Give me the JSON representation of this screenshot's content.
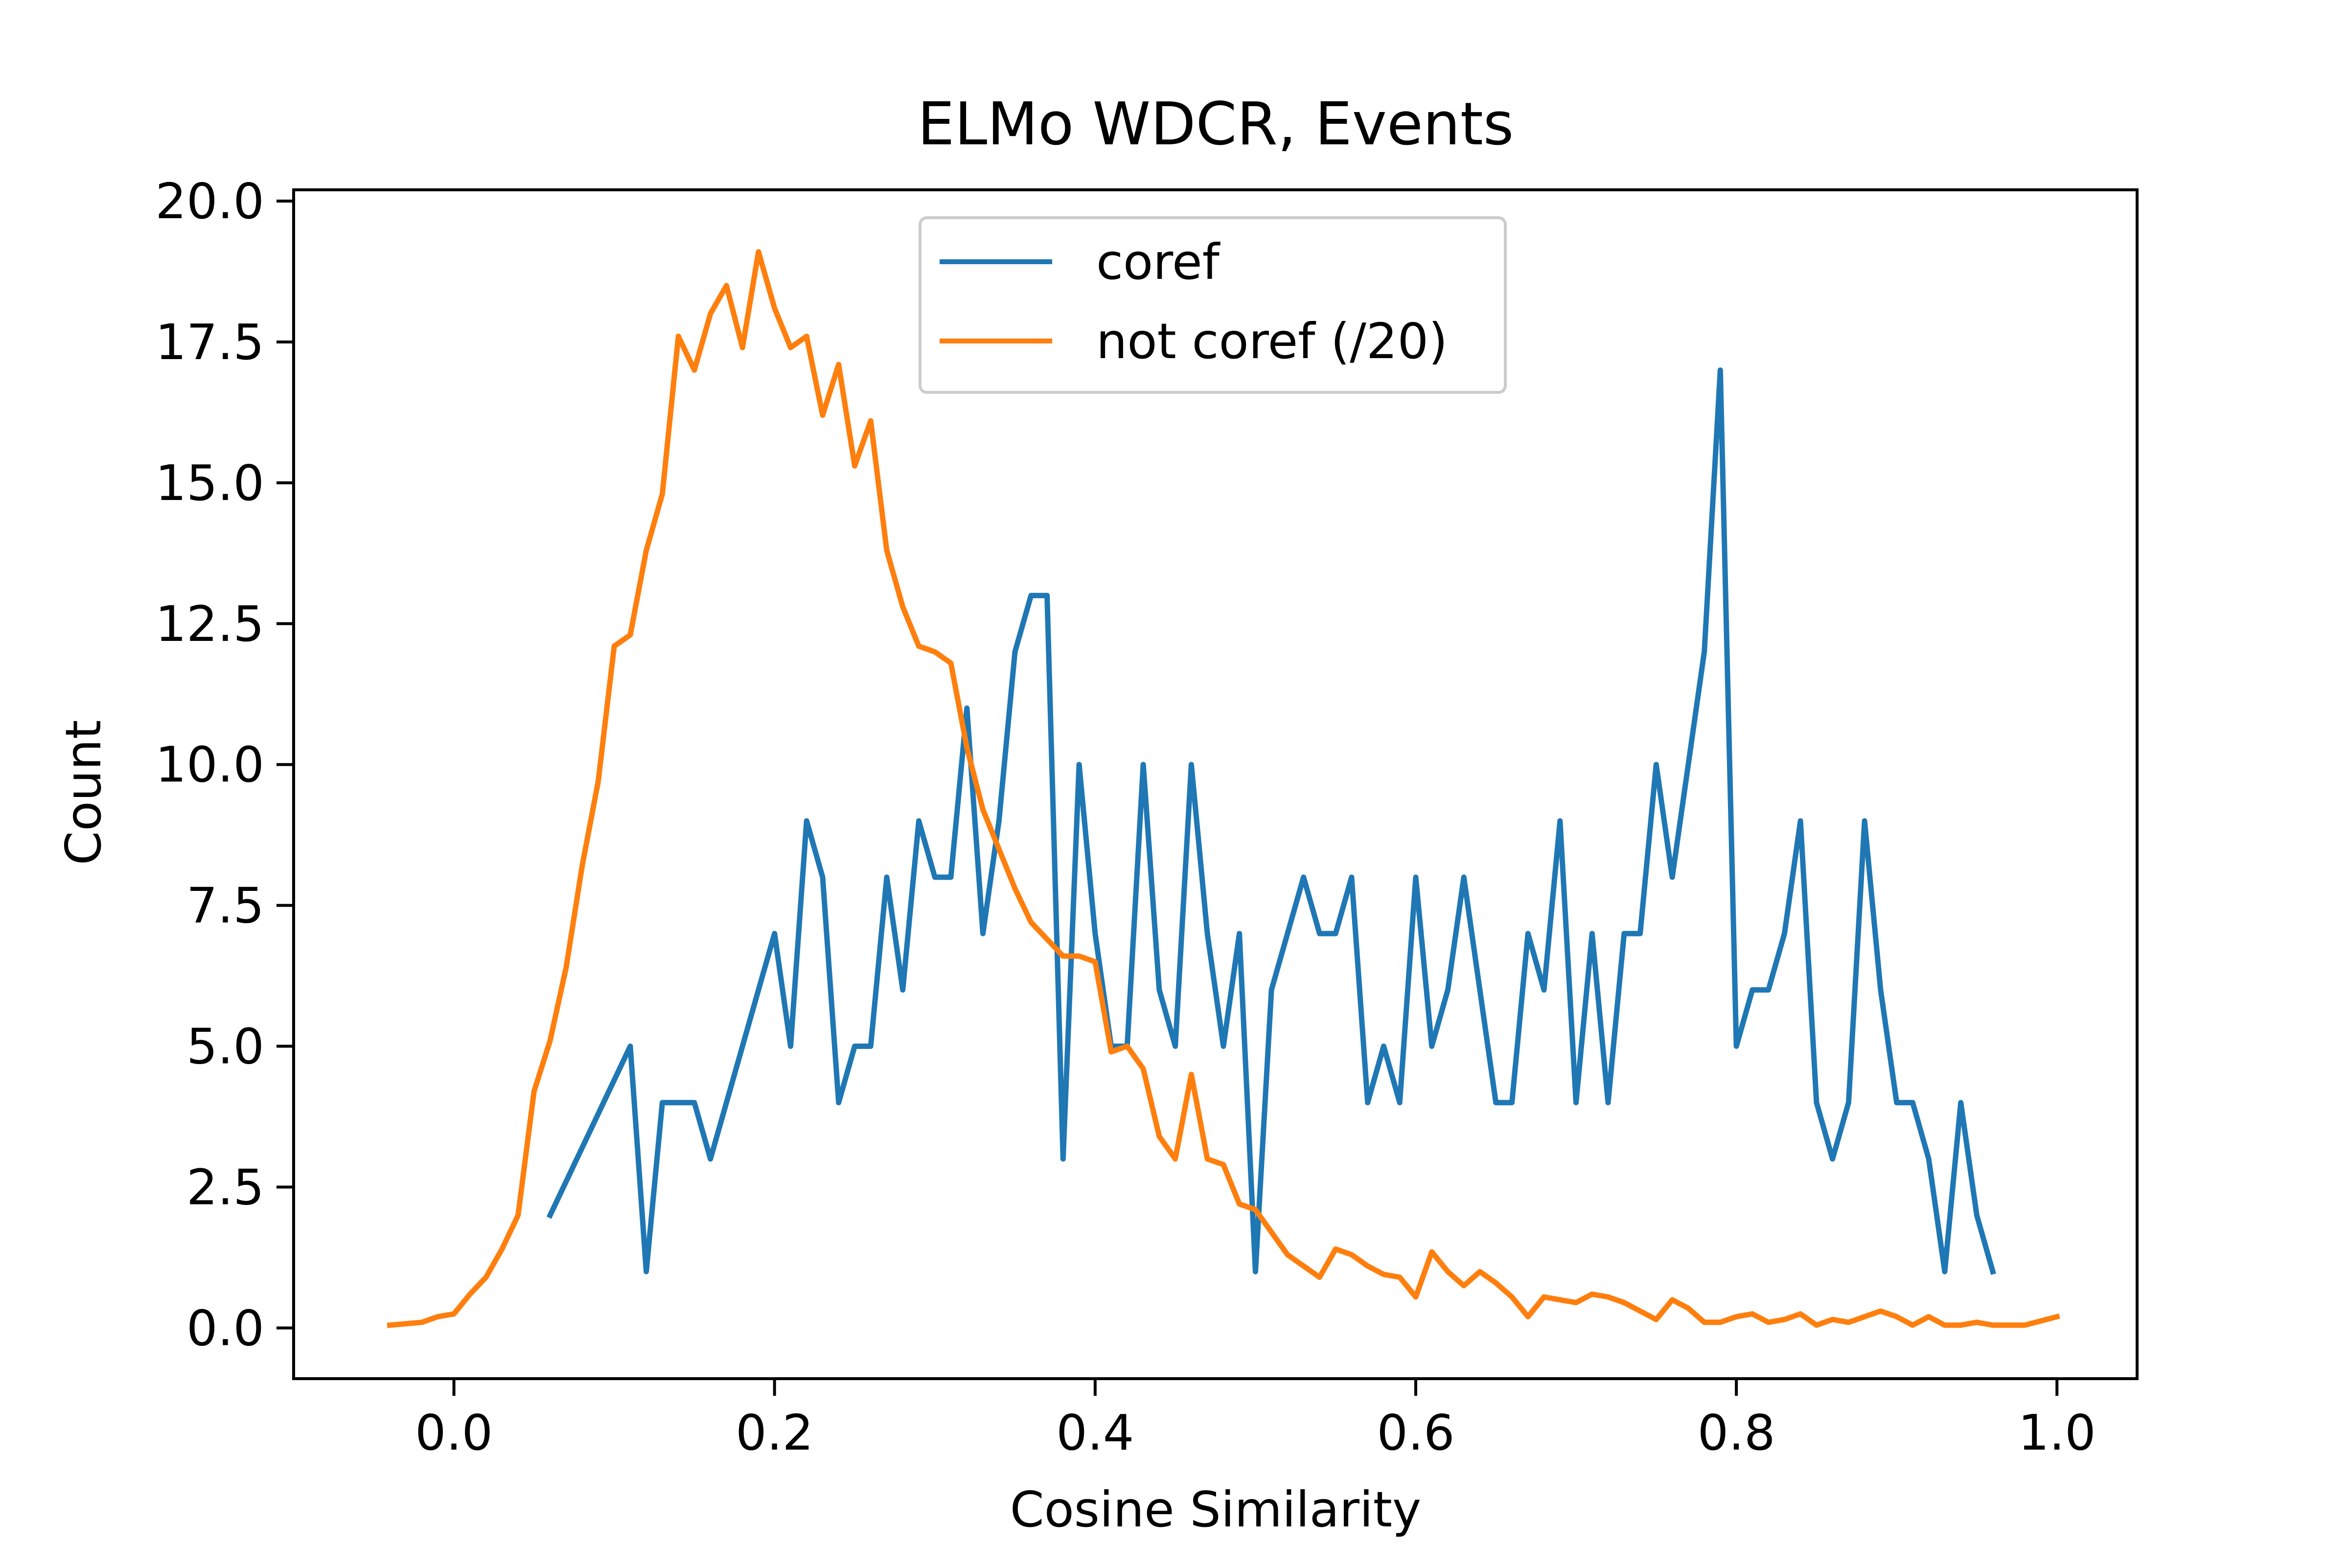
{
  "chart_data": {
    "type": "line",
    "title": "ELMo WDCR, Events",
    "xlabel": "Cosine Similarity",
    "ylabel": "Count",
    "xlim": [
      -0.1,
      1.05
    ],
    "ylim": [
      -0.9,
      20.2
    ],
    "x_ticks": [
      0.0,
      0.2,
      0.4,
      0.6,
      0.8,
      1.0
    ],
    "x_tick_labels": [
      "0.0",
      "0.2",
      "0.4",
      "0.6",
      "0.8",
      "1.0"
    ],
    "y_ticks": [
      0.0,
      2.5,
      5.0,
      7.5,
      10.0,
      12.5,
      15.0,
      17.5,
      20.0
    ],
    "y_tick_labels": [
      "0.0",
      "2.5",
      "5.0",
      "7.5",
      "10.0",
      "12.5",
      "15.0",
      "17.5",
      "20.0"
    ],
    "grid": false,
    "legend_position": "top-center",
    "series": [
      {
        "name": "coref",
        "color": "#1f77b4",
        "x": [
          0.06,
          0.11,
          0.12,
          0.13,
          0.15,
          0.16,
          0.19,
          0.2,
          0.21,
          0.22,
          0.23,
          0.24,
          0.25,
          0.26,
          0.27,
          0.28,
          0.29,
          0.3,
          0.31,
          0.32,
          0.33,
          0.34,
          0.35,
          0.36,
          0.37,
          0.38,
          0.39,
          0.4,
          0.41,
          0.42,
          0.43,
          0.44,
          0.45,
          0.46,
          0.47,
          0.48,
          0.49,
          0.5,
          0.51,
          0.53,
          0.54,
          0.55,
          0.56,
          0.57,
          0.58,
          0.59,
          0.6,
          0.61,
          0.62,
          0.63,
          0.65,
          0.66,
          0.67,
          0.68,
          0.69,
          0.7,
          0.71,
          0.72,
          0.73,
          0.74,
          0.75,
          0.76,
          0.78,
          0.79,
          0.8,
          0.81,
          0.82,
          0.83,
          0.84,
          0.85,
          0.86,
          0.87,
          0.88,
          0.89,
          0.9,
          0.91,
          0.92,
          0.93,
          0.94,
          0.95,
          0.96
        ],
        "y": [
          2,
          5,
          1,
          4,
          4,
          3,
          6,
          7,
          5,
          9,
          8,
          4,
          5,
          5,
          8,
          6,
          9,
          8,
          8,
          11,
          7,
          9,
          12,
          13,
          13,
          3,
          10,
          7,
          5,
          5,
          10,
          6,
          5,
          10,
          7,
          5,
          7,
          1,
          6,
          8,
          7,
          7,
          8,
          4,
          5,
          4,
          8,
          5,
          6,
          8,
          4,
          4,
          7,
          6,
          9,
          4,
          7,
          4,
          7,
          7,
          10,
          8,
          12,
          17,
          5,
          6,
          6,
          7,
          9,
          4,
          3,
          4,
          9,
          6,
          4,
          4,
          3,
          1,
          4,
          2,
          1
        ]
      },
      {
        "name": "not coref (/20)",
        "color": "#ff7f0e",
        "x": [
          -0.04,
          -0.02,
          -0.01,
          0.0,
          0.01,
          0.02,
          0.03,
          0.04,
          0.05,
          0.06,
          0.07,
          0.08,
          0.09,
          0.1,
          0.11,
          0.12,
          0.13,
          0.14,
          0.15,
          0.16,
          0.17,
          0.18,
          0.19,
          0.2,
          0.21,
          0.22,
          0.23,
          0.24,
          0.25,
          0.26,
          0.27,
          0.28,
          0.29,
          0.3,
          0.31,
          0.32,
          0.33,
          0.34,
          0.35,
          0.36,
          0.37,
          0.38,
          0.39,
          0.4,
          0.41,
          0.42,
          0.43,
          0.44,
          0.45,
          0.46,
          0.47,
          0.48,
          0.49,
          0.5,
          0.51,
          0.52,
          0.53,
          0.54,
          0.55,
          0.56,
          0.57,
          0.58,
          0.59,
          0.6,
          0.61,
          0.62,
          0.63,
          0.64,
          0.65,
          0.66,
          0.67,
          0.68,
          0.69,
          0.7,
          0.71,
          0.72,
          0.73,
          0.74,
          0.75,
          0.76,
          0.77,
          0.78,
          0.79,
          0.8,
          0.81,
          0.82,
          0.83,
          0.84,
          0.85,
          0.86,
          0.87,
          0.88,
          0.89,
          0.9,
          0.91,
          0.92,
          0.93,
          0.94,
          0.95,
          0.96,
          0.97,
          0.98,
          1.0
        ],
        "y": [
          0.05,
          0.1,
          0.2,
          0.25,
          0.6,
          0.9,
          1.4,
          2.0,
          4.2,
          5.1,
          6.4,
          8.2,
          9.7,
          12.1,
          12.3,
          13.8,
          14.8,
          17.6,
          17.0,
          18.0,
          18.5,
          17.4,
          19.1,
          18.1,
          17.4,
          17.6,
          16.2,
          17.1,
          15.3,
          16.1,
          13.8,
          12.8,
          12.1,
          12.0,
          11.8,
          10.3,
          9.2,
          8.5,
          7.8,
          7.2,
          6.9,
          6.6,
          6.6,
          6.5,
          4.9,
          5.0,
          4.6,
          3.4,
          3.0,
          4.5,
          3.0,
          2.9,
          2.2,
          2.1,
          1.7,
          1.3,
          1.1,
          0.9,
          1.4,
          1.3,
          1.1,
          0.95,
          0.9,
          0.55,
          1.35,
          1.0,
          0.75,
          1.0,
          0.8,
          0.55,
          0.2,
          0.55,
          0.5,
          0.45,
          0.6,
          0.55,
          0.45,
          0.3,
          0.15,
          0.5,
          0.35,
          0.1,
          0.1,
          0.2,
          0.25,
          0.1,
          0.15,
          0.25,
          0.05,
          0.15,
          0.1,
          0.2,
          0.3,
          0.2,
          0.05,
          0.2,
          0.05,
          0.05,
          0.1,
          0.05,
          0.05,
          0.05,
          0.2
        ]
      }
    ]
  }
}
